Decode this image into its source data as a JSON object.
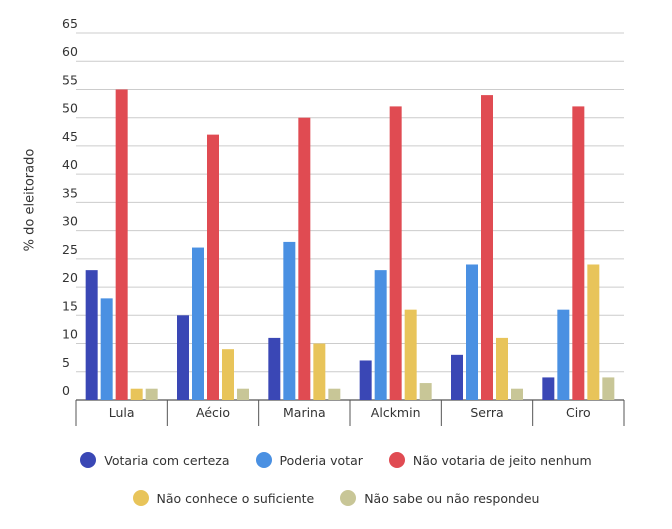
{
  "chart_data": {
    "type": "bar",
    "categories": [
      "Lula",
      "Aécio",
      "Marina",
      "Alckmin",
      "Serra",
      "Ciro"
    ],
    "series": [
      {
        "name": "Votaria com certeza",
        "color": "#3a47b5",
        "values": [
          23,
          15,
          11,
          7,
          8,
          4
        ]
      },
      {
        "name": "Poderia votar",
        "color": "#4a90e2",
        "values": [
          18,
          27,
          28,
          23,
          24,
          16
        ]
      },
      {
        "name": "Não votaria de jeito nenhum",
        "color": "#e04b52",
        "values": [
          55,
          47,
          50,
          52,
          54,
          52
        ]
      },
      {
        "name": "Não conhece o suficiente",
        "color": "#e8c45a",
        "values": [
          2,
          9,
          10,
          16,
          11,
          24
        ]
      },
      {
        "name": "Não sabe ou não respondeu",
        "color": "#c8c697",
        "values": [
          2,
          2,
          2,
          3,
          2,
          4
        ]
      }
    ],
    "title": "",
    "xlabel": "",
    "ylabel": "% do eleitorado",
    "ylim": [
      0,
      65
    ],
    "yticks": [
      0,
      5,
      10,
      15,
      20,
      25,
      30,
      35,
      40,
      45,
      50,
      55,
      60,
      65
    ],
    "grid": true,
    "legend_position": "bottom"
  }
}
